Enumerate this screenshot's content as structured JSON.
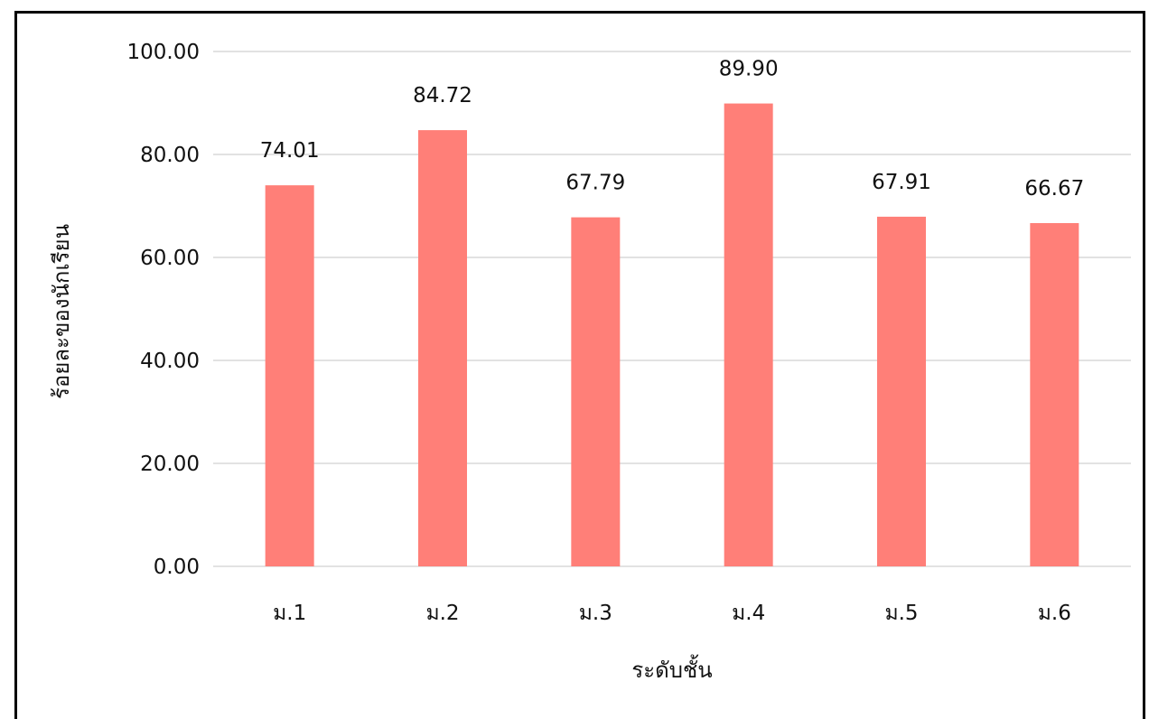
{
  "chart_data": {
    "type": "bar",
    "categories": [
      "ม.1",
      "ม.2",
      "ม.3",
      "ม.4",
      "ม.5",
      "ม.6"
    ],
    "values": [
      74.01,
      84.72,
      67.79,
      89.9,
      67.91,
      66.67
    ],
    "data_labels": [
      "74.01",
      "84.72",
      "67.79",
      "89.90",
      "67.91",
      "66.67"
    ],
    "xlabel": "ระดับชั้น",
    "ylabel": "ร้อยละของนักเรียน",
    "ylim": [
      0,
      100
    ],
    "yticks": [
      0,
      20,
      40,
      60,
      80,
      100
    ],
    "ytick_labels": [
      "0.00",
      "20.00",
      "40.00",
      "60.00",
      "80.00",
      "100.00"
    ],
    "grid": true,
    "legend": "none",
    "bar_color": "#ff7f78",
    "grid_color": "#d9d9d9"
  }
}
